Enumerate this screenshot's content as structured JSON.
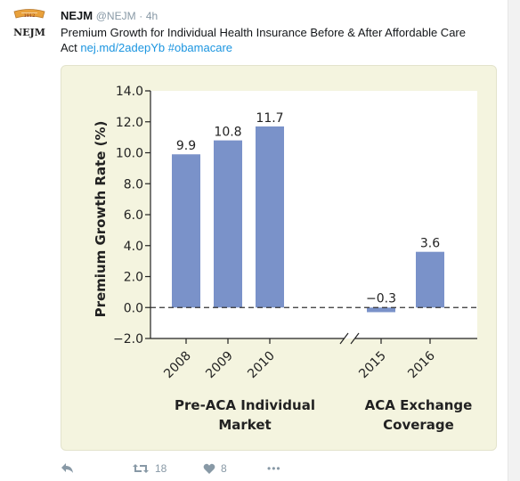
{
  "tweet": {
    "author": "NEJM",
    "handle": "@NEJM",
    "separator": "·",
    "time": "4h",
    "text_line1": "Premium Growth for Individual Health Insurance Before & After Affordable Care",
    "text_prefix": "Act",
    "link": "nej.md/2adepYb",
    "hashtag": "#obamacare",
    "avatar_text": "NEJM",
    "avatar_seal_text": "1812"
  },
  "actions": {
    "retweets": "18",
    "likes": "8",
    "more": "•••"
  },
  "colors": {
    "bar": "#7a92c9",
    "card_bg": "#f4f4df",
    "plot_bg": "#ffffff",
    "link": "#1b95e0",
    "muted": "#8899a6"
  },
  "chart_data": {
    "type": "bar",
    "ylabel": "Premium Growth Rate (%)",
    "ylim": [
      -2.0,
      14.0
    ],
    "yticks": [
      "14.0",
      "12.0",
      "10.0",
      "8.0",
      "6.0",
      "4.0",
      "2.0",
      "0.0",
      "−2.0"
    ],
    "ytick_values": [
      14,
      12,
      10,
      8,
      6,
      4,
      2,
      0,
      -2
    ],
    "categories": [
      "2008",
      "2009",
      "2010",
      "2015",
      "2016"
    ],
    "values": [
      9.9,
      10.8,
      11.7,
      -0.3,
      3.6
    ],
    "value_labels": [
      "9.9",
      "10.8",
      "11.7",
      "−0.3",
      "3.6"
    ],
    "groups": [
      {
        "label_line1": "Pre-ACA Individual",
        "label_line2": "Market"
      },
      {
        "label_line1": "ACA Exchange",
        "label_line2": "Coverage"
      }
    ],
    "baseline": "dashed",
    "axis_break": true,
    "grid": false
  }
}
